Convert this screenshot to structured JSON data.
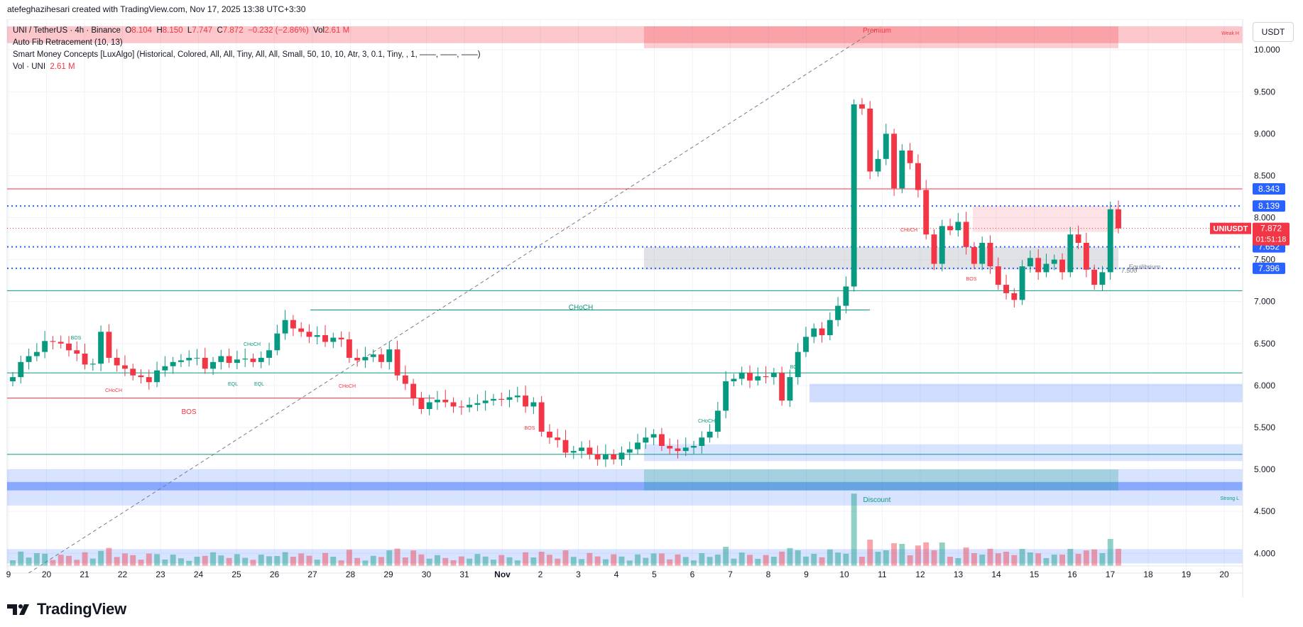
{
  "header": {
    "creator_line": "atefeghazihesari created with TradingView.com, Nov 17, 2025 13:38 UTC+3:30"
  },
  "legend": {
    "symbol": "UNI / TetherUS · 4h · Binance",
    "o_label": "O",
    "o": "8.104",
    "h_label": "H",
    "h": "8.150",
    "l_label": "L",
    "l": "7.747",
    "c_label": "C",
    "c": "7.872",
    "change": "−0.232 (−2.86%)",
    "vol_label": "Vol",
    "vol": "2.61 M",
    "indicator1": "Auto Fib Retracement (10, 13)",
    "indicator2": "Smart Money Concepts [LuxAlgo] (Historical, Colored, All, All, Tiny, All, All, Small, 50, 10, 10, Atr, 3, 0.1, Tiny, , 1, ——, ——, ——)",
    "indicator3": "Vol · UNI",
    "indicator3_value": "2.61 M"
  },
  "currency": "USDT",
  "footer": {
    "brand": "TradingView",
    "logo": "tradingview-logo-icon"
  },
  "colors": {
    "up": "#089981",
    "down": "#f23645",
    "blue": "#2962ff",
    "fib": "#2962ff"
  },
  "chart_data": {
    "type": "candlestick",
    "interval": "4h",
    "ylim": [
      3.85,
      10.45
    ],
    "y_ticks": [
      "10.000",
      "9.500",
      "9.000",
      "8.500",
      "8.000",
      "7.500",
      "7.000",
      "6.500",
      "6.000",
      "5.500",
      "5.000",
      "4.500",
      "4.000"
    ],
    "x_ticks": [
      "9",
      "20",
      "21",
      "22",
      "23",
      "24",
      "25",
      "26",
      "27",
      "28",
      "29",
      "30",
      "31",
      "Nov",
      "2",
      "3",
      "4",
      "5",
      "6",
      "7",
      "8",
      "9",
      "10",
      "11",
      "12",
      "13",
      "14",
      "15",
      "16",
      "17",
      "18",
      "19",
      "20"
    ],
    "price_badges": [
      {
        "label": "8.343",
        "value": 8.343,
        "color": "#2962ff"
      },
      {
        "label": "8.139",
        "value": 8.139,
        "color": "#2962ff"
      },
      {
        "label": "7.652",
        "value": 7.652,
        "color": "#2962ff"
      },
      {
        "label": "7.396",
        "value": 7.396,
        "color": "#2962ff"
      }
    ],
    "last_price": {
      "symbol": "UNIUSDT",
      "price": "7.872",
      "countdown": "01:51:18",
      "value": 7.872
    },
    "labels": {
      "premium": "Premium",
      "discount": "Discount",
      "equilibrium": "Equilibrium",
      "weak_high": "Weak H",
      "strong_low": "Strong L",
      "choch": "CHoCH",
      "bos": "BOS",
      "eql": "EQL",
      "equilibrium_value": "7.500"
    },
    "closes": [
      6.1,
      6.28,
      6.35,
      6.4,
      6.53,
      6.52,
      6.5,
      6.42,
      6.38,
      6.25,
      6.26,
      6.64,
      6.33,
      6.24,
      6.2,
      6.12,
      6.1,
      6.04,
      6.18,
      6.23,
      6.28,
      6.3,
      6.33,
      6.33,
      6.2,
      6.28,
      6.35,
      6.27,
      6.31,
      6.32,
      6.28,
      6.33,
      6.42,
      6.62,
      6.78,
      6.68,
      6.64,
      6.58,
      6.6,
      6.52,
      6.57,
      6.55,
      6.33,
      6.3,
      6.34,
      6.37,
      6.28,
      6.43,
      6.12,
      6.02,
      5.85,
      5.72,
      5.8,
      5.83,
      5.8,
      5.75,
      5.74,
      5.77,
      5.79,
      5.82,
      5.84,
      5.83,
      5.86,
      5.88,
      5.75,
      5.8,
      5.45,
      5.38,
      5.35,
      5.2,
      5.22,
      5.26,
      5.18,
      5.12,
      5.18,
      5.12,
      5.2,
      5.24,
      5.32,
      5.38,
      5.42,
      5.28,
      5.25,
      5.22,
      5.26,
      5.28,
      5.38,
      5.45,
      5.7,
      6.05,
      6.08,
      6.15,
      6.06,
      6.11,
      6.1,
      6.15,
      5.82,
      6.1,
      6.4,
      6.58,
      6.68,
      6.6,
      6.78,
      6.95,
      7.18,
      9.35,
      9.3,
      8.55,
      8.7,
      9.0,
      8.35,
      8.8,
      8.65,
      8.33,
      7.8,
      7.45,
      7.9,
      7.85,
      7.95,
      7.65,
      7.45,
      7.7,
      7.42,
      7.2,
      7.1,
      7.02,
      7.42,
      7.52,
      7.35,
      7.45,
      7.5,
      7.35,
      7.8,
      7.7,
      7.38,
      7.2,
      7.35,
      8.1,
      7.872
    ],
    "volume_axis_baseline": "bottom",
    "volume_notes": "Volume bars colored by candle direction; largest near Nov 11"
  }
}
